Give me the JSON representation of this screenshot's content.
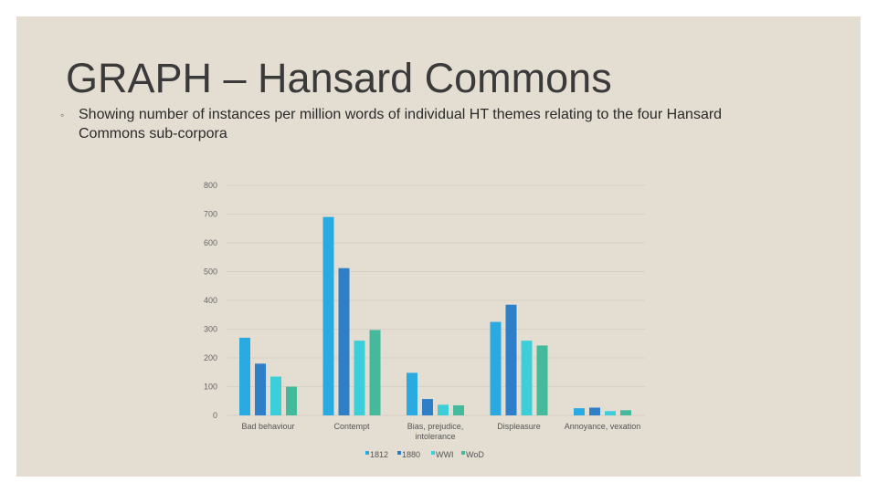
{
  "slide": {
    "title": "GRAPH – Hansard Commons",
    "subtitle": "Showing number of instances per million words of individual HT themes relating to the four Hansard Commons sub-corpora"
  },
  "chart_data": {
    "type": "bar",
    "categories": [
      [
        "Bad behaviour"
      ],
      [
        "Contempt"
      ],
      [
        "Bias, prejudice,",
        "intolerance"
      ],
      [
        "Displeasure"
      ],
      [
        "Annoyance, vexation"
      ]
    ],
    "series": [
      {
        "name": "1812",
        "color": "#29abe2",
        "values": [
          270,
          690,
          148,
          325,
          25
        ]
      },
      {
        "name": "1880",
        "color": "#2e7fc7",
        "values": [
          180,
          512,
          57,
          385,
          27
        ]
      },
      {
        "name": "WWI",
        "color": "#3ccfda",
        "values": [
          135,
          260,
          37,
          260,
          15
        ]
      },
      {
        "name": "WoD",
        "color": "#45b99c",
        "values": [
          100,
          297,
          35,
          243,
          18
        ]
      }
    ],
    "yticks": [
      "0",
      "100",
      "200",
      "300",
      "400",
      "500",
      "600",
      "700",
      "800"
    ],
    "ylim": [
      0,
      800
    ],
    "grid": true,
    "legend": "bottom-center"
  }
}
